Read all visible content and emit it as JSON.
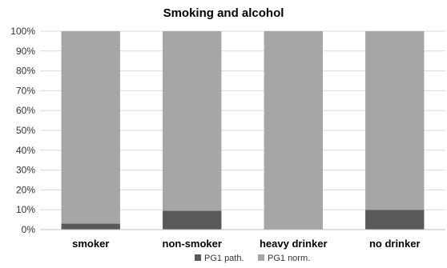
{
  "chart_data": {
    "type": "bar",
    "stacked": true,
    "title": "Smoking and alcohol",
    "categories": [
      "smoker",
      "non-smoker",
      "heavy drinker",
      "no drinker"
    ],
    "series": [
      {
        "name": "PG1 path.",
        "values": [
          3,
          9.5,
          0,
          10
        ],
        "color": "#595959"
      },
      {
        "name": "PG1 norm.",
        "values": [
          97,
          90.5,
          100,
          90
        ],
        "color": "#a6a6a6"
      }
    ],
    "yticks": [
      "0%",
      "10%",
      "20%",
      "30%",
      "40%",
      "50%",
      "60%",
      "70%",
      "80%",
      "90%",
      "100%"
    ],
    "ylim": [
      0,
      100
    ],
    "grid": true,
    "legend": "bottom"
  }
}
